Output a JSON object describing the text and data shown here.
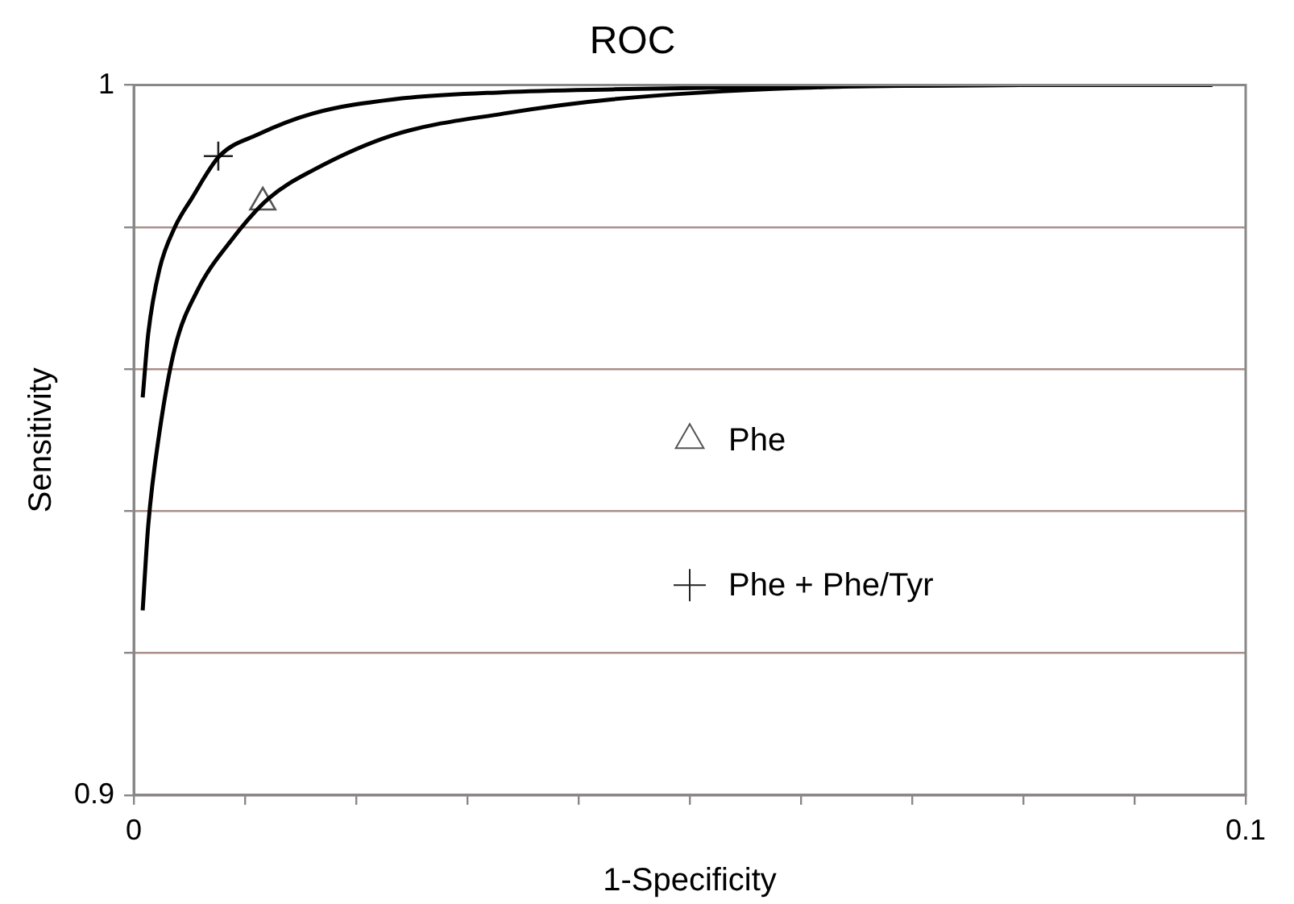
{
  "chart_data": {
    "type": "line",
    "title": "ROC",
    "xlabel": "1-Specificity",
    "ylabel": "Sensitivity",
    "xlim": [
      0,
      0.1
    ],
    "ylim": [
      0.9,
      1
    ],
    "xticks": [
      0,
      {
        "value": 0.01,
        "label": null
      },
      {
        "value": 0.02,
        "label": null
      },
      {
        "value": 0.03,
        "label": null
      },
      {
        "value": 0.04,
        "label": null
      },
      {
        "value": 0.05,
        "label": null
      },
      {
        "value": 0.06,
        "label": null
      },
      {
        "value": 0.07,
        "label": null
      },
      {
        "value": 0.08,
        "label": null
      },
      {
        "value": 0.09,
        "label": null
      },
      0.1
    ],
    "yticks": [
      0.9,
      {
        "value": 0.92,
        "label": null
      },
      {
        "value": 0.94,
        "label": null
      },
      {
        "value": 0.96,
        "label": null
      },
      {
        "value": 0.98,
        "label": null
      },
      1
    ],
    "grid": "y",
    "legend": "center",
    "series": [
      {
        "color": "#000000",
        "marker": "none",
        "x": [
          0.0008,
          0.0013,
          0.0023,
          0.0037,
          0.0052,
          0.0077,
          0.0111,
          0.0161,
          0.0234,
          0.0333,
          0.0431,
          0.06,
          0.08,
          0.097
        ],
        "values": [
          0.956,
          0.965,
          0.974,
          0.98,
          0.984,
          0.99,
          0.993,
          0.996,
          0.998,
          0.999,
          0.9994,
          0.9998,
          1,
          1
        ]
      },
      {
        "color": "#000000",
        "marker": "none",
        "x": [
          0.0008,
          0.0013,
          0.0023,
          0.0037,
          0.0057,
          0.0087,
          0.0121,
          0.0161,
          0.0234,
          0.0333,
          0.0431,
          0.06,
          0.08,
          0.097
        ],
        "values": [
          0.926,
          0.938,
          0.951,
          0.963,
          0.971,
          0.978,
          0.984,
          0.988,
          0.993,
          0.996,
          0.998,
          0.9996,
          1,
          1
        ]
      },
      {
        "type": "scatter",
        "name": "Phe",
        "color": "#555555",
        "marker": "triangle",
        "x": [
          0.0116
        ],
        "values": [
          0.9835
        ]
      },
      {
        "type": "scatter",
        "name": "Phe + Phe/Tyr",
        "color": "#222222",
        "marker": "cross",
        "x": [
          0.0076
        ],
        "values": [
          0.99
        ]
      }
    ]
  }
}
